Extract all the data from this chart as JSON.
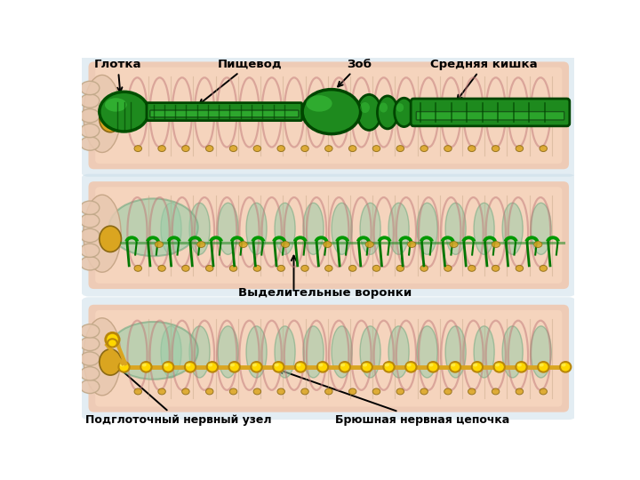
{
  "bg_color": "#ffffff",
  "labels": {
    "glotka": "Глотка",
    "pishevod": "Пищевод",
    "zob": "Зоб",
    "srednyaya": "Средняя кишка",
    "vydelitelnye": "Выделительные воронки",
    "podglotochny": "Подглоточный нервный узел",
    "bryushnaya": "Брюшная нервная цепочка"
  }
}
